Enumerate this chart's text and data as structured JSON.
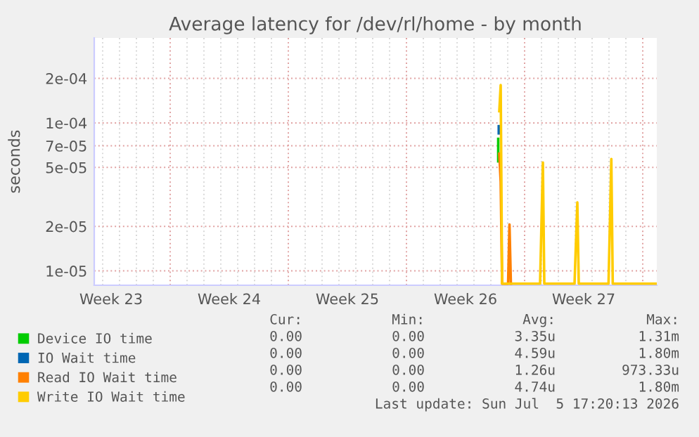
{
  "chart_data": {
    "type": "line",
    "title": "Average latency for /dev/rl/home - by month",
    "ylabel": "seconds",
    "log": "y",
    "xlim": [
      "2026-06-03T12:00",
      "2026-07-06T20:00"
    ],
    "xticks": [
      {
        "value": "2026-06-04T12:00",
        "label": "Week 23"
      },
      {
        "value": "2026-06-11T12:00",
        "label": "Week 24"
      },
      {
        "value": "2026-06-18T12:00",
        "label": "Week 25"
      },
      {
        "value": "2026-06-25T12:00",
        "label": "Week 26"
      },
      {
        "value": "2026-07-02T12:00",
        "label": "Week 27"
      }
    ],
    "ylim": [
      8e-06,
      0.000375
    ],
    "yticks": [
      {
        "value": 1e-05,
        "label": "1e-05"
      },
      {
        "value": 2e-05,
        "label": "2e-05"
      },
      {
        "value": 5e-05,
        "label": "5e-05"
      },
      {
        "value": 7e-05,
        "label": "7e-05"
      },
      {
        "value": 0.0001,
        "label": "1e-04"
      },
      {
        "value": 0.0002,
        "label": "2e-04"
      }
    ],
    "grid": true,
    "legend": "bottom",
    "marker": "none",
    "line_style": "solid",
    "series": [
      {
        "name": "Device IO time",
        "color": "#00cc00",
        "x": [
          "2026-06-27T10:30",
          "2026-06-27T10:30"
        ],
        "values": [
          7.8e-05,
          5.5e-05
        ]
      },
      {
        "name": "IO Wait time",
        "color": "#0066b3",
        "x": [
          "2026-06-27T11:15",
          "2026-06-27T11:15"
        ],
        "values": [
          8.5e-05,
          9.5e-05
        ]
      },
      {
        "name": "Read IO Wait time",
        "color": "#ff8000",
        "x": [
          "2026-06-27T12:00",
          "2026-06-27T14:00",
          "2026-06-27T16:00",
          "2026-06-28T00:30",
          "2026-06-28T02:30",
          "2026-06-28T04:30"
        ],
        "values": [
          6.2e-05,
          4e-05,
          8.2e-06,
          8.2e-06,
          2.06e-05,
          8.2e-06
        ]
      },
      {
        "name": "Write IO Wait time",
        "color": "#ffcc00",
        "x": [
          "2026-06-27T12:00",
          "2026-06-27T14:00",
          "2026-06-27T16:00",
          "2026-06-29T22:00",
          "2026-06-30T02:00",
          "2026-06-30T04:00",
          "2026-07-01T23:00",
          "2026-07-02T03:00",
          "2026-07-02T05:00",
          "2026-07-03T23:20",
          "2026-07-04T03:20",
          "2026-07-04T05:20",
          "2026-07-06T20:00"
        ],
        "values": [
          0.00012,
          0.00018,
          8.2e-06,
          8.2e-06,
          5.4e-05,
          8.2e-06,
          8.2e-06,
          2.9e-05,
          8.2e-06,
          8.2e-06,
          5.7e-05,
          8.2e-06,
          8.2e-06
        ]
      }
    ],
    "annotations": [
      "Cur:",
      "Min:",
      "Avg:",
      "Max:",
      "0.00",
      "0.00",
      "3.35u",
      "1.31m",
      "0.00",
      "0.00",
      "4.59u",
      "1.80m",
      "0.00",
      "0.00",
      "1.26u",
      "973.33u",
      "0.00",
      "0.00",
      "4.74u",
      "1.80m",
      "Last update: Sun Jul  5 17:20:13 2026"
    ]
  }
}
